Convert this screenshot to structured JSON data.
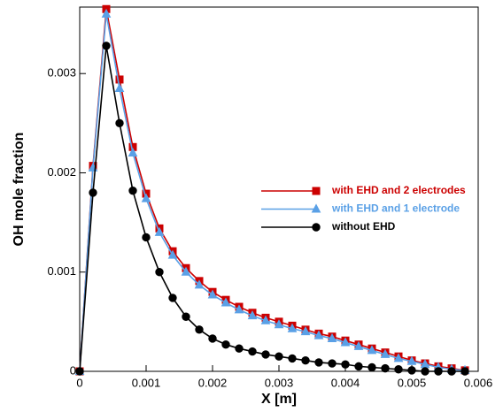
{
  "chart_data": {
    "type": "line",
    "xlabel": "X [m]",
    "ylabel": "OH mole fraction",
    "xlim": [
      0,
      0.006
    ],
    "ylim": [
      0,
      0.00367
    ],
    "xticks": [
      0,
      0.001,
      0.002,
      0.003,
      0.004,
      0.005,
      0.006
    ],
    "yticks": [
      0,
      0.001,
      0.002,
      0.003
    ],
    "legend": "center-right",
    "x": [
      0,
      0.0002,
      0.0004,
      0.0006,
      0.0008,
      0.001,
      0.0012,
      0.0014,
      0.0016,
      0.0018,
      0.002,
      0.0022,
      0.0024,
      0.0026,
      0.0028,
      0.003,
      0.0032,
      0.0034,
      0.0036,
      0.0038,
      0.004,
      0.0042,
      0.0044,
      0.0046,
      0.0048,
      0.005,
      0.0052,
      0.0054,
      0.0056,
      0.0058
    ],
    "series": [
      {
        "name": "with EHD and 2 electrodes",
        "color": "#cc0000",
        "marker": "square",
        "values": [
          0,
          0.00207,
          0.00365,
          0.00294,
          0.00226,
          0.00179,
          0.00144,
          0.00121,
          0.00104,
          0.00091,
          0.0008,
          0.00072,
          0.00065,
          0.00059,
          0.00054,
          0.0005,
          0.00046,
          0.00042,
          0.00038,
          0.00035,
          0.00031,
          0.00027,
          0.00023,
          0.00019,
          0.00015,
          0.00011,
          8e-05,
          5e-05,
          3e-05,
          1e-05
        ]
      },
      {
        "name": "with EHD and 1 electrode",
        "color": "#5aa0e6",
        "marker": "triangle",
        "values": [
          0,
          0.00205,
          0.0036,
          0.00285,
          0.0022,
          0.00174,
          0.0014,
          0.00117,
          0.001,
          0.00087,
          0.00077,
          0.00069,
          0.00062,
          0.00056,
          0.00051,
          0.00047,
          0.00043,
          0.0004,
          0.00036,
          0.00033,
          0.00029,
          0.00025,
          0.00021,
          0.00017,
          0.00013,
          0.0001,
          7e-05,
          4e-05,
          2e-05,
          1e-05
        ]
      },
      {
        "name": "without EHD",
        "color": "#000000",
        "marker": "circle",
        "values": [
          0,
          0.0018,
          0.00328,
          0.0025,
          0.00182,
          0.00135,
          0.001,
          0.00074,
          0.00055,
          0.00042,
          0.00033,
          0.00027,
          0.00023,
          0.0002,
          0.00017,
          0.00015,
          0.00013,
          0.00011,
          9e-05,
          8e-05,
          7e-05,
          5e-05,
          4e-05,
          3e-05,
          2e-05,
          1e-05,
          0,
          0,
          0,
          0
        ]
      }
    ]
  }
}
